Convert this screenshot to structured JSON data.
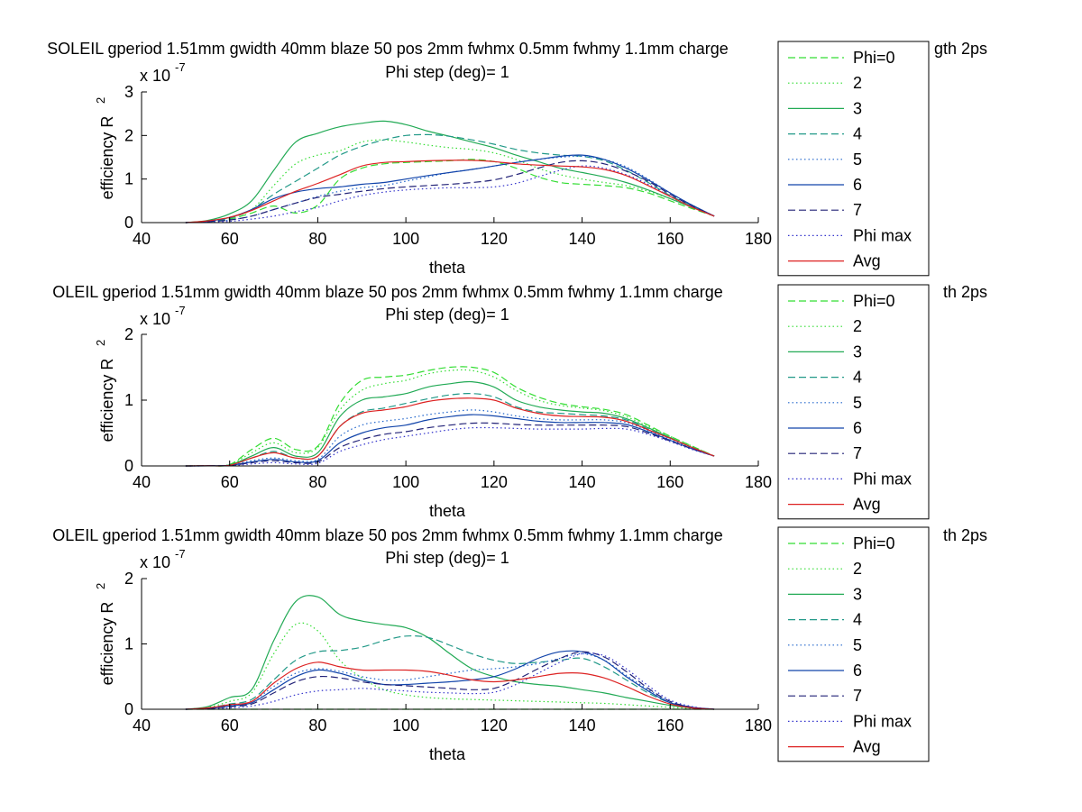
{
  "chart_data": [
    {
      "type": "line",
      "title": "SOLEIL gperiod 1.51mm gwidth 40mm blaze 50 pos 2mm fwhmx 0.5mm fwhmy 1.1mm charge",
      "title_tail": "gth 2ps",
      "subtitle": "Phi step (deg)= 1",
      "xlabel": "theta",
      "ylabel": "efficiency R",
      "ylabel_sup": "2",
      "exponent_label": "x 10",
      "exponent_sup": "-7",
      "xlim": [
        40,
        180
      ],
      "ylim": [
        0,
        3
      ],
      "xticks": [
        40,
        60,
        80,
        100,
        120,
        140,
        160,
        180
      ],
      "yticks": [
        0,
        1,
        2,
        3
      ],
      "grid": false,
      "legend": "right",
      "x": [
        50,
        55,
        60,
        65,
        70,
        75,
        80,
        85,
        90,
        95,
        100,
        105,
        110,
        115,
        120,
        125,
        130,
        135,
        140,
        145,
        150,
        155,
        160,
        165,
        170
      ],
      "series": [
        {
          "name": "Phi=0",
          "color": "#33dd33",
          "dash": "dashed",
          "values": [
            0,
            0.02,
            0.08,
            0.22,
            0.38,
            0.22,
            0.4,
            1.0,
            1.25,
            1.35,
            1.38,
            1.4,
            1.42,
            1.45,
            1.4,
            1.25,
            1.05,
            0.92,
            0.88,
            0.85,
            0.8,
            0.68,
            0.5,
            0.32,
            0.15
          ]
        },
        {
          "name": "2",
          "color": "#33dd33",
          "dash": "dotted",
          "values": [
            0,
            0.03,
            0.12,
            0.3,
            0.85,
            1.35,
            1.55,
            1.65,
            1.85,
            1.9,
            1.85,
            1.78,
            1.72,
            1.68,
            1.6,
            1.45,
            1.25,
            1.1,
            1.0,
            0.92,
            0.85,
            0.72,
            0.55,
            0.35,
            0.15
          ]
        },
        {
          "name": "3",
          "color": "#22aa55",
          "dash": "solid",
          "values": [
            0,
            0.05,
            0.2,
            0.5,
            1.2,
            1.85,
            2.05,
            2.2,
            2.28,
            2.33,
            2.25,
            2.1,
            1.98,
            1.85,
            1.72,
            1.55,
            1.4,
            1.25,
            1.15,
            1.05,
            0.92,
            0.75,
            0.55,
            0.35,
            0.15
          ]
        },
        {
          "name": "4",
          "color": "#229988",
          "dash": "dashed",
          "values": [
            0,
            0.03,
            0.1,
            0.3,
            0.65,
            0.95,
            1.25,
            1.55,
            1.75,
            1.9,
            2.0,
            2.02,
            1.98,
            1.9,
            1.8,
            1.68,
            1.6,
            1.55,
            1.52,
            1.42,
            1.2,
            0.92,
            0.62,
            0.38,
            0.15
          ]
        },
        {
          "name": "5",
          "color": "#2266cc",
          "dash": "dotted",
          "values": [
            0,
            0.02,
            0.06,
            0.15,
            0.3,
            0.45,
            0.6,
            0.72,
            0.8,
            0.85,
            0.95,
            1.05,
            1.15,
            1.22,
            1.3,
            1.38,
            1.45,
            1.5,
            1.52,
            1.45,
            1.28,
            1.0,
            0.68,
            0.4,
            0.15
          ]
        },
        {
          "name": "6",
          "color": "#1144aa",
          "dash": "solid",
          "values": [
            0,
            0.03,
            0.12,
            0.3,
            0.55,
            0.7,
            0.78,
            0.82,
            0.88,
            0.92,
            1.0,
            1.08,
            1.15,
            1.22,
            1.3,
            1.38,
            1.45,
            1.52,
            1.55,
            1.45,
            1.25,
            0.98,
            0.68,
            0.4,
            0.15
          ]
        },
        {
          "name": "7",
          "color": "#222277",
          "dash": "dashed",
          "values": [
            0,
            0.02,
            0.06,
            0.15,
            0.3,
            0.45,
            0.58,
            0.65,
            0.72,
            0.78,
            0.82,
            0.85,
            0.88,
            0.92,
            0.98,
            1.1,
            1.25,
            1.38,
            1.42,
            1.35,
            1.18,
            0.95,
            0.65,
            0.38,
            0.15
          ]
        },
        {
          "name": "Phi max",
          "color": "#3333cc",
          "dash": "dotted",
          "values": [
            0,
            0.01,
            0.03,
            0.08,
            0.15,
            0.25,
            0.35,
            0.5,
            0.62,
            0.7,
            0.75,
            0.78,
            0.8,
            0.8,
            0.82,
            0.9,
            1.05,
            1.2,
            1.3,
            1.25,
            1.1,
            0.88,
            0.6,
            0.35,
            0.15
          ]
        },
        {
          "name": "Avg",
          "color": "#dd2222",
          "dash": "solid",
          "values": [
            0,
            0.04,
            0.12,
            0.28,
            0.5,
            0.72,
            0.9,
            1.1,
            1.3,
            1.38,
            1.4,
            1.42,
            1.43,
            1.43,
            1.4,
            1.35,
            1.32,
            1.3,
            1.28,
            1.22,
            1.08,
            0.85,
            0.6,
            0.35,
            0.15
          ]
        }
      ]
    },
    {
      "type": "line",
      "title": "OLEIL gperiod 1.51mm gwidth 40mm blaze 50 pos 2mm fwhmx 0.5mm fwhmy 1.1mm charge",
      "title_tail": "th 2ps",
      "subtitle": "Phi step (deg)= 1",
      "xlabel": "theta",
      "ylabel": "efficiency R",
      "ylabel_sup": "2",
      "exponent_label": "x 10",
      "exponent_sup": "-7",
      "xlim": [
        40,
        180
      ],
      "ylim": [
        0,
        2
      ],
      "xticks": [
        40,
        60,
        80,
        100,
        120,
        140,
        160,
        180
      ],
      "yticks": [
        0,
        1,
        2
      ],
      "grid": false,
      "legend": "right",
      "x": [
        50,
        55,
        60,
        65,
        70,
        75,
        80,
        85,
        90,
        95,
        100,
        105,
        110,
        115,
        120,
        125,
        130,
        135,
        140,
        145,
        150,
        155,
        160,
        165,
        170
      ],
      "series": [
        {
          "name": "Phi=0",
          "color": "#33dd33",
          "dash": "dashed",
          "values": [
            0,
            0.005,
            0.02,
            0.25,
            0.42,
            0.25,
            0.3,
            0.95,
            1.3,
            1.35,
            1.38,
            1.45,
            1.5,
            1.5,
            1.42,
            1.2,
            1.05,
            0.95,
            0.9,
            0.86,
            0.78,
            0.62,
            0.45,
            0.3,
            0.15
          ]
        },
        {
          "name": "2",
          "color": "#33dd33",
          "dash": "dotted",
          "values": [
            0,
            0.005,
            0.02,
            0.2,
            0.35,
            0.2,
            0.28,
            0.85,
            1.15,
            1.25,
            1.3,
            1.4,
            1.45,
            1.45,
            1.35,
            1.15,
            1.0,
            0.92,
            0.88,
            0.84,
            0.75,
            0.6,
            0.45,
            0.3,
            0.15
          ]
        },
        {
          "name": "3",
          "color": "#22aa55",
          "dash": "solid",
          "values": [
            0,
            0.004,
            0.015,
            0.15,
            0.28,
            0.15,
            0.2,
            0.75,
            1.0,
            1.05,
            1.1,
            1.2,
            1.25,
            1.28,
            1.2,
            1.0,
            0.9,
            0.85,
            0.82,
            0.8,
            0.72,
            0.58,
            0.43,
            0.28,
            0.15
          ]
        },
        {
          "name": "4",
          "color": "#229988",
          "dash": "dashed",
          "values": [
            0,
            0.003,
            0.012,
            0.12,
            0.22,
            0.12,
            0.15,
            0.6,
            0.82,
            0.88,
            0.95,
            1.02,
            1.08,
            1.1,
            1.05,
            0.9,
            0.82,
            0.8,
            0.78,
            0.76,
            0.7,
            0.56,
            0.42,
            0.28,
            0.15
          ]
        },
        {
          "name": "5",
          "color": "#2266cc",
          "dash": "dotted",
          "values": [
            0,
            0.003,
            0.01,
            0.08,
            0.12,
            0.08,
            0.1,
            0.45,
            0.62,
            0.68,
            0.72,
            0.78,
            0.82,
            0.85,
            0.82,
            0.76,
            0.72,
            0.7,
            0.7,
            0.7,
            0.66,
            0.54,
            0.4,
            0.27,
            0.15
          ]
        },
        {
          "name": "6",
          "color": "#1144aa",
          "dash": "solid",
          "values": [
            0,
            0.002,
            0.008,
            0.06,
            0.1,
            0.06,
            0.08,
            0.35,
            0.5,
            0.58,
            0.62,
            0.7,
            0.75,
            0.78,
            0.76,
            0.72,
            0.68,
            0.66,
            0.66,
            0.66,
            0.63,
            0.52,
            0.39,
            0.26,
            0.15
          ]
        },
        {
          "name": "7",
          "color": "#222277",
          "dash": "dashed",
          "values": [
            0,
            0.002,
            0.006,
            0.05,
            0.08,
            0.05,
            0.06,
            0.28,
            0.4,
            0.48,
            0.52,
            0.58,
            0.62,
            0.65,
            0.65,
            0.63,
            0.62,
            0.62,
            0.62,
            0.62,
            0.6,
            0.5,
            0.38,
            0.26,
            0.15
          ]
        },
        {
          "name": "Phi max",
          "color": "#3333cc",
          "dash": "dotted",
          "values": [
            0,
            0.001,
            0.004,
            0.03,
            0.05,
            0.03,
            0.04,
            0.22,
            0.32,
            0.4,
            0.45,
            0.5,
            0.55,
            0.58,
            0.58,
            0.57,
            0.56,
            0.56,
            0.56,
            0.57,
            0.56,
            0.48,
            0.37,
            0.25,
            0.15
          ]
        },
        {
          "name": "Avg",
          "color": "#dd2222",
          "dash": "solid",
          "values": [
            0,
            0.003,
            0.01,
            0.12,
            0.2,
            0.12,
            0.15,
            0.6,
            0.8,
            0.85,
            0.9,
            0.98,
            1.02,
            1.03,
            1.0,
            0.88,
            0.8,
            0.76,
            0.75,
            0.74,
            0.68,
            0.55,
            0.42,
            0.28,
            0.15
          ]
        }
      ]
    },
    {
      "type": "line",
      "title": "OLEIL gperiod 1.51mm gwidth 40mm blaze 50 pos 2mm fwhmx 0.5mm fwhmy 1.1mm charge",
      "title_tail": "th 2ps",
      "subtitle": "Phi step (deg)= 1",
      "xlabel": "theta",
      "ylabel": "efficiency R",
      "ylabel_sup": "2",
      "exponent_label": "x 10",
      "exponent_sup": "-7",
      "xlim": [
        40,
        180
      ],
      "ylim": [
        0,
        2
      ],
      "xticks": [
        40,
        60,
        80,
        100,
        120,
        140,
        160,
        180
      ],
      "yticks": [
        0,
        1,
        2
      ],
      "grid": false,
      "legend": "right",
      "x": [
        50,
        55,
        60,
        65,
        70,
        75,
        80,
        85,
        90,
        95,
        100,
        105,
        110,
        115,
        120,
        125,
        130,
        135,
        140,
        145,
        150,
        155,
        160,
        165,
        170
      ],
      "series": [
        {
          "name": "Phi=0",
          "color": "#33dd33",
          "dash": "dashed",
          "values": [
            0,
            0,
            0,
            0,
            0,
            0,
            0,
            0,
            0,
            0,
            0,
            0,
            0,
            0,
            0,
            0,
            0,
            0,
            0,
            0,
            0,
            0,
            0,
            0,
            0
          ]
        },
        {
          "name": "2",
          "color": "#33dd33",
          "dash": "dotted",
          "values": [
            0,
            0.03,
            0.12,
            0.25,
            0.85,
            1.3,
            1.2,
            0.75,
            0.48,
            0.3,
            0.22,
            0.18,
            0.16,
            0.15,
            0.14,
            0.13,
            0.12,
            0.11,
            0.1,
            0.09,
            0.07,
            0.05,
            0.03,
            0.01,
            0
          ]
        },
        {
          "name": "3",
          "color": "#22aa55",
          "dash": "solid",
          "values": [
            0,
            0.04,
            0.18,
            0.3,
            1.05,
            1.65,
            1.72,
            1.45,
            1.35,
            1.3,
            1.25,
            1.1,
            0.85,
            0.62,
            0.5,
            0.42,
            0.38,
            0.35,
            0.3,
            0.25,
            0.18,
            0.12,
            0.06,
            0.02,
            0
          ]
        },
        {
          "name": "4",
          "color": "#229988",
          "dash": "dashed",
          "values": [
            0,
            0.02,
            0.08,
            0.15,
            0.45,
            0.75,
            0.88,
            0.9,
            0.95,
            1.05,
            1.12,
            1.1,
            0.98,
            0.85,
            0.75,
            0.7,
            0.72,
            0.75,
            0.78,
            0.65,
            0.45,
            0.25,
            0.1,
            0.03,
            0
          ]
        },
        {
          "name": "5",
          "color": "#2266cc",
          "dash": "dotted",
          "values": [
            0,
            0.02,
            0.06,
            0.12,
            0.35,
            0.55,
            0.62,
            0.58,
            0.5,
            0.45,
            0.45,
            0.5,
            0.55,
            0.6,
            0.62,
            0.65,
            0.7,
            0.78,
            0.85,
            0.75,
            0.52,
            0.3,
            0.12,
            0.03,
            0
          ]
        },
        {
          "name": "6",
          "color": "#1144aa",
          "dash": "solid",
          "values": [
            0,
            0.01,
            0.05,
            0.1,
            0.3,
            0.5,
            0.6,
            0.55,
            0.45,
            0.38,
            0.38,
            0.4,
            0.42,
            0.45,
            0.5,
            0.62,
            0.78,
            0.88,
            0.88,
            0.75,
            0.5,
            0.28,
            0.1,
            0.03,
            0
          ]
        },
        {
          "name": "7",
          "color": "#222277",
          "dash": "dashed",
          "values": [
            0,
            0.01,
            0.04,
            0.08,
            0.25,
            0.42,
            0.5,
            0.48,
            0.42,
            0.38,
            0.36,
            0.34,
            0.32,
            0.3,
            0.32,
            0.45,
            0.62,
            0.78,
            0.88,
            0.8,
            0.58,
            0.32,
            0.12,
            0.03,
            0
          ]
        },
        {
          "name": "Phi max",
          "color": "#3333cc",
          "dash": "dotted",
          "values": [
            0,
            0.005,
            0.02,
            0.05,
            0.12,
            0.22,
            0.28,
            0.3,
            0.32,
            0.3,
            0.28,
            0.26,
            0.25,
            0.24,
            0.26,
            0.38,
            0.55,
            0.72,
            0.85,
            0.82,
            0.62,
            0.36,
            0.14,
            0.04,
            0
          ]
        },
        {
          "name": "Avg",
          "color": "#dd2222",
          "dash": "solid",
          "values": [
            0,
            0.02,
            0.07,
            0.12,
            0.4,
            0.62,
            0.72,
            0.65,
            0.6,
            0.6,
            0.6,
            0.58,
            0.52,
            0.45,
            0.42,
            0.45,
            0.5,
            0.55,
            0.55,
            0.48,
            0.35,
            0.2,
            0.08,
            0.02,
            0
          ]
        }
      ]
    }
  ]
}
